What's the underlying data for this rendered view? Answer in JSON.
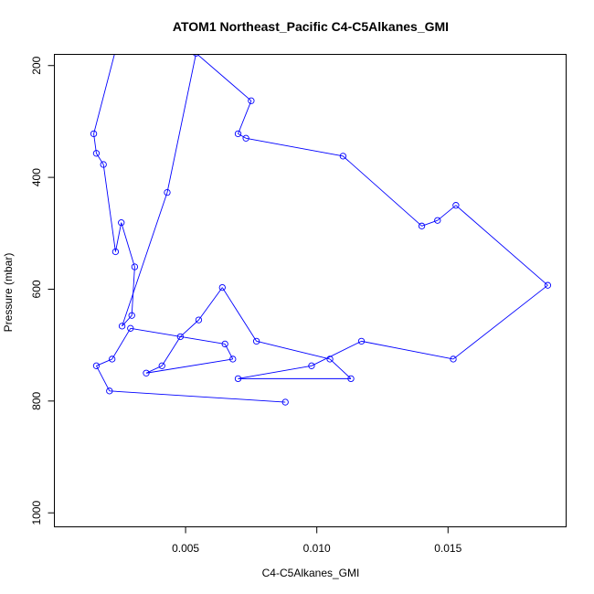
{
  "chart_data": {
    "type": "line",
    "title": "ATOM1 Northeast_Pacific C4-C5Alkanes_GMI",
    "xlabel": "C4-C5Alkanes_GMI",
    "ylabel": "Pressure (mbar)",
    "xlim": [
      0.0,
      0.0195
    ],
    "ylim": [
      1025,
      180
    ],
    "y_reversed": true,
    "x_ticks": [
      0.005,
      0.01,
      0.015
    ],
    "x_tick_labels": [
      "0.005",
      "0.010",
      "0.015"
    ],
    "y_ticks": [
      200,
      400,
      600,
      800,
      1000
    ],
    "y_tick_labels": [
      "200",
      "400",
      "600",
      "800",
      "1000"
    ],
    "grid": false,
    "legend": "none",
    "line_color": "#0000ff",
    "marker": "open-circle",
    "series": [
      {
        "x": [
          0.0024,
          0.0015,
          0.0016,
          0.00187,
          0.00233,
          0.00255,
          0.00306,
          0.00295,
          0.00258,
          0.0043,
          0.0054,
          0.0075,
          0.007,
          0.0073,
          0.011,
          0.014,
          0.0146,
          0.0153,
          0.0188,
          0.0152,
          0.0117,
          0.0098,
          0.007,
          0.0113,
          0.0105,
          0.0077,
          0.0064,
          0.0055,
          0.0048,
          0.0041,
          0.0035,
          0.0068,
          0.0065,
          0.0029,
          0.0022,
          0.0016,
          0.0021,
          0.0088
        ],
        "y": [
          160,
          322,
          357,
          377,
          533,
          481,
          560,
          647,
          666,
          427,
          178,
          263,
          322,
          330,
          362,
          487,
          477,
          450,
          593,
          725,
          693,
          737,
          760,
          760,
          725,
          693,
          597,
          655,
          685,
          737,
          750,
          725,
          698,
          670,
          725,
          737,
          782,
          802
        ]
      }
    ]
  }
}
